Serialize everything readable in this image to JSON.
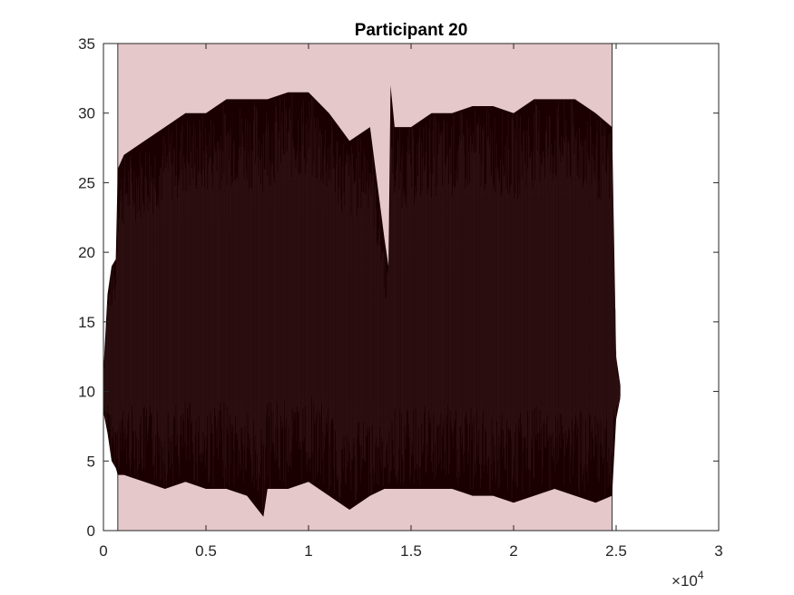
{
  "chart_data": {
    "type": "line",
    "title": "Participant 20",
    "xlabel": "",
    "ylabel": "",
    "xlim": [
      0,
      30000
    ],
    "ylim": [
      0,
      35
    ],
    "x_ticks": [
      0,
      5000,
      10000,
      15000,
      20000,
      25000,
      30000
    ],
    "x_tick_labels": [
      "0",
      "0.5",
      "1",
      "1.5",
      "2",
      "2.5",
      "3"
    ],
    "y_ticks": [
      0,
      5,
      10,
      15,
      20,
      25,
      30,
      35
    ],
    "y_tick_labels": [
      "0",
      "5",
      "10",
      "15",
      "20",
      "25",
      "30",
      "35"
    ],
    "x_exponent": {
      "base": "10",
      "power": "4"
    },
    "grid": false,
    "legend": "none",
    "shaded_region": {
      "x_start": 700,
      "x_end": 24800,
      "y_start": 0,
      "y_end": 35,
      "color": "#e5c8ca"
    },
    "series": [
      {
        "color": "#1a0000",
        "x": [
          0,
          200,
          400,
          600,
          700,
          1000,
          2000,
          3000,
          4000,
          5000,
          6000,
          7000,
          7800,
          8000,
          9000,
          10000,
          11000,
          12000,
          13000,
          13700,
          13900,
          14000,
          14200,
          15000,
          16000,
          17000,
          18000,
          19000,
          20000,
          21000,
          22000,
          23000,
          24000,
          24800,
          25000,
          25200
        ],
        "upper": [
          11.5,
          17,
          19,
          19.5,
          26,
          27,
          28,
          29,
          30,
          30,
          31,
          31,
          31,
          31,
          31.5,
          31.5,
          30,
          28,
          29,
          21,
          19,
          32,
          29,
          29,
          30,
          30,
          30.5,
          30.5,
          30,
          31,
          31,
          31,
          30,
          29,
          12.5,
          10.5
        ],
        "lower": [
          8.5,
          7,
          5,
          4.5,
          4,
          4,
          3.5,
          3,
          3.5,
          3,
          3,
          2.5,
          1,
          3,
          3,
          3.5,
          2.5,
          1.5,
          2.5,
          3,
          3,
          3,
          3,
          3,
          3,
          3,
          2.5,
          2.5,
          2,
          2.5,
          3,
          2.5,
          2,
          2.5,
          8,
          9.5
        ]
      }
    ]
  }
}
